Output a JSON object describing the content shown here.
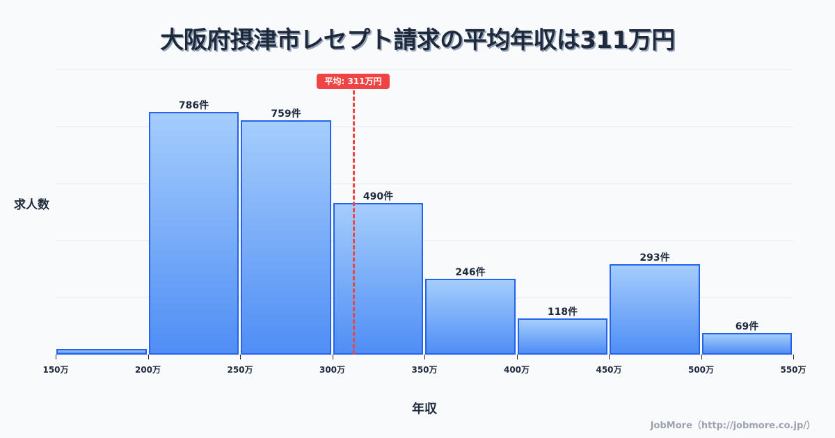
{
  "title": "大阪府摂津市レセプト請求の平均年収は311万円",
  "average_badge": "平均: 311万円",
  "ylabel": "求人数",
  "xlabel": "年収",
  "credit": "JobMore（http://jobmore.co.jp/）",
  "colors": {
    "bar_border": "#2563eb",
    "bar_top": "#a5cdfc",
    "bar_bottom": "#4f8ef5",
    "average_line": "#ef4444",
    "text": "#1e293b"
  },
  "chart_data": {
    "type": "bar",
    "title": "大阪府摂津市レセプト請求の平均年収は311万円",
    "xlabel": "年収",
    "ylabel": "求人数",
    "categories": [
      "150万-200万",
      "200万-250万",
      "250万-300万",
      "300万-350万",
      "350万-400万",
      "400万-450万",
      "450万-500万",
      "500万-550万"
    ],
    "values": [
      18,
      786,
      759,
      490,
      246,
      118,
      293,
      69
    ],
    "value_labels": [
      "",
      "786件",
      "759件",
      "490件",
      "246件",
      "118件",
      "293件",
      "69件"
    ],
    "x_ticks": [
      "150万",
      "200万",
      "250万",
      "300万",
      "350万",
      "400万",
      "450万",
      "500万",
      "550万"
    ],
    "average": {
      "value": 311,
      "label": "平均: 311万円"
    },
    "grid": true,
    "legend": "none"
  }
}
